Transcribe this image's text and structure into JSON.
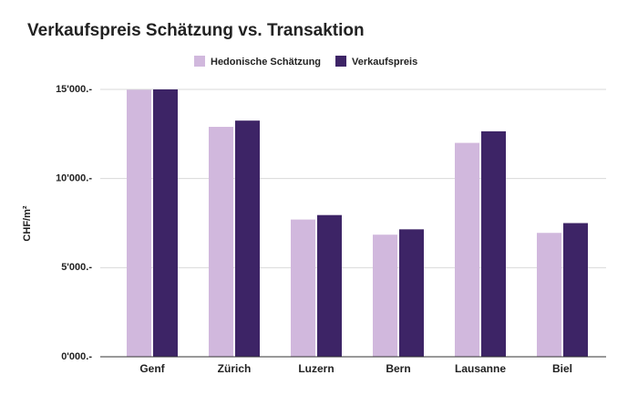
{
  "chart_data": {
    "type": "bar",
    "title": "Verkaufspreis Schätzung vs. Transaktion",
    "y_label": "CHF/m²",
    "categories": [
      "Genf",
      "Zürich",
      "Luzern",
      "Bern",
      "Lausanne",
      "Biel"
    ],
    "series": [
      {
        "name": "Hedonische Schätzung",
        "color": "#d1b8dd",
        "values": [
          14980,
          12900,
          7700,
          6850,
          12000,
          6950
        ]
      },
      {
        "name": "Verkaufspreis",
        "color": "#3d2466",
        "values": [
          15000,
          13250,
          7950,
          7150,
          12650,
          7500
        ]
      }
    ],
    "ylim": [
      0,
      15000
    ],
    "yticks": [
      {
        "value": 0,
        "label": "0'000.-"
      },
      {
        "value": 5000,
        "label": "5'000.-"
      },
      {
        "value": 10000,
        "label": "10'000.-"
      },
      {
        "value": 15000,
        "label": "15'000.-"
      }
    ],
    "grid": true,
    "legend": "top"
  }
}
